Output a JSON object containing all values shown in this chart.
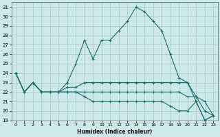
{
  "xlabel": "Humidex (Indice chaleur)",
  "bg_color": "#cce8e8",
  "grid_color": "#aacccc",
  "line_color": "#1a6b6b",
  "xlim": [
    0,
    23
  ],
  "ylim": [
    19,
    31.5
  ],
  "yticks": [
    19,
    20,
    21,
    22,
    23,
    24,
    25,
    26,
    27,
    28,
    29,
    30,
    31
  ],
  "xticks": [
    0,
    1,
    2,
    3,
    4,
    5,
    6,
    7,
    8,
    9,
    10,
    11,
    12,
    13,
    14,
    15,
    16,
    17,
    18,
    19,
    20,
    21,
    22,
    23
  ],
  "lines": [
    {
      "x": [
        0,
        1,
        2,
        3,
        4,
        5,
        6,
        7,
        8,
        9,
        10,
        11,
        12,
        13,
        14,
        15,
        16,
        17,
        18,
        19,
        20,
        21,
        22,
        23
      ],
      "y": [
        24,
        22,
        23,
        22,
        22,
        22,
        23,
        25,
        27.5,
        25.5,
        27.5,
        27.5,
        28.5,
        29.5,
        31,
        30.5,
        29.5,
        28.5,
        26,
        23.5,
        23,
        21,
        19,
        19.5
      ]
    },
    {
      "x": [
        0,
        1,
        2,
        3,
        4,
        5,
        6,
        7,
        8,
        9,
        10,
        11,
        12,
        13,
        14,
        15,
        16,
        17,
        18,
        19,
        20,
        21,
        22,
        23
      ],
      "y": [
        24,
        22,
        23,
        22,
        22,
        22,
        22.5,
        22.5,
        23,
        23,
        23,
        23,
        23,
        23,
        23,
        23,
        23,
        23,
        23,
        23,
        23,
        21.5,
        21,
        19.5
      ]
    },
    {
      "x": [
        0,
        1,
        2,
        3,
        4,
        5,
        6,
        7,
        8,
        9,
        10,
        11,
        12,
        13,
        14,
        15,
        16,
        17,
        18,
        19,
        20,
        21,
        22,
        23
      ],
      "y": [
        24,
        22,
        23,
        22,
        22,
        22,
        22,
        22,
        22,
        22,
        22,
        22,
        22,
        22,
        22,
        22,
        22,
        22,
        22,
        22,
        21.5,
        21.5,
        20,
        19.5
      ]
    },
    {
      "x": [
        0,
        1,
        2,
        3,
        4,
        5,
        6,
        7,
        8,
        9,
        10,
        11,
        12,
        13,
        14,
        15,
        16,
        17,
        18,
        19,
        20,
        21,
        22,
        23
      ],
      "y": [
        24,
        22,
        23,
        22,
        22,
        22,
        22,
        22,
        21.5,
        21,
        21,
        21,
        21,
        21,
        21,
        21,
        21,
        21,
        20.5,
        20,
        20,
        21,
        19,
        19.5
      ]
    }
  ]
}
